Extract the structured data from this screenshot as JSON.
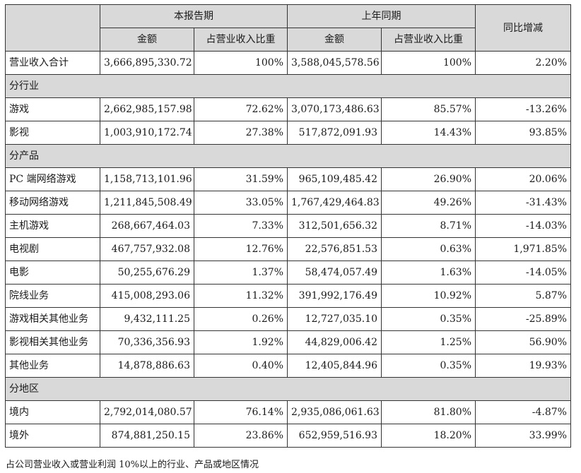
{
  "header": {
    "current_period": "本报告期",
    "prior_period": "上年同期",
    "yoy_change": "同比增减",
    "amount": "金额",
    "share_of_revenue": "占营业收入比重"
  },
  "total": {
    "label": "营业收入合计",
    "cur_amount": "3,666,895,330.72",
    "cur_share": "100%",
    "prev_amount": "3,588,045,578.56",
    "prev_share": "100%",
    "yoy": "2.20%"
  },
  "sections": [
    {
      "title": "分行业",
      "rows": [
        {
          "label": "游戏",
          "cur_amount": "2,662,985,157.98",
          "cur_share": "72.62%",
          "prev_amount": "3,070,173,486.63",
          "prev_share": "85.57%",
          "yoy": "-13.26%"
        },
        {
          "label": "影视",
          "cur_amount": "1,003,910,172.74",
          "cur_share": "27.38%",
          "prev_amount": "517,872,091.93",
          "prev_share": "14.43%",
          "yoy": "93.85%"
        }
      ]
    },
    {
      "title": "分产品",
      "rows": [
        {
          "label": "PC 端网络游戏",
          "cur_amount": "1,158,713,101.96",
          "cur_share": "31.59%",
          "prev_amount": "965,109,485.42",
          "prev_share": "26.90%",
          "yoy": "20.06%"
        },
        {
          "label": "移动网络游戏",
          "cur_amount": "1,211,845,508.49",
          "cur_share": "33.05%",
          "prev_amount": "1,767,429,464.83",
          "prev_share": "49.26%",
          "yoy": "-31.43%"
        },
        {
          "label": "主机游戏",
          "cur_amount": "268,667,464.03",
          "cur_share": "7.33%",
          "prev_amount": "312,501,656.32",
          "prev_share": "8.71%",
          "yoy": "-14.03%"
        },
        {
          "label": "电视剧",
          "cur_amount": "467,757,932.08",
          "cur_share": "12.76%",
          "prev_amount": "22,576,851.53",
          "prev_share": "0.63%",
          "yoy": "1,971.85%"
        },
        {
          "label": "电影",
          "cur_amount": "50,255,676.29",
          "cur_share": "1.37%",
          "prev_amount": "58,474,057.49",
          "prev_share": "1.63%",
          "yoy": "-14.05%"
        },
        {
          "label": "院线业务",
          "cur_amount": "415,008,293.06",
          "cur_share": "11.32%",
          "prev_amount": "391,992,176.49",
          "prev_share": "10.92%",
          "yoy": "5.87%"
        },
        {
          "label": "游戏相关其他业务",
          "cur_amount": "9,432,111.25",
          "cur_share": "0.26%",
          "prev_amount": "12,727,035.10",
          "prev_share": "0.35%",
          "yoy": "-25.89%"
        },
        {
          "label": "影视相关其他业务",
          "cur_amount": "70,336,356.93",
          "cur_share": "1.92%",
          "prev_amount": "44,829,006.42",
          "prev_share": "1.25%",
          "yoy": "56.90%"
        },
        {
          "label": "其他业务",
          "cur_amount": "14,878,886.63",
          "cur_share": "0.40%",
          "prev_amount": "12,405,844.96",
          "prev_share": "0.35%",
          "yoy": "19.93%"
        }
      ]
    },
    {
      "title": "分地区",
      "rows": [
        {
          "label": "境内",
          "cur_amount": "2,792,014,080.57",
          "cur_share": "76.14%",
          "prev_amount": "2,935,086,061.63",
          "prev_share": "81.80%",
          "yoy": "-4.87%"
        },
        {
          "label": "境外",
          "cur_amount": "874,881,250.15",
          "cur_share": "23.86%",
          "prev_amount": "652,959,516.93",
          "prev_share": "18.20%",
          "yoy": "33.99%"
        }
      ]
    }
  ],
  "footnote": "占公司营业收入或营业利润 10%以上的行业、产品或地区情况"
}
